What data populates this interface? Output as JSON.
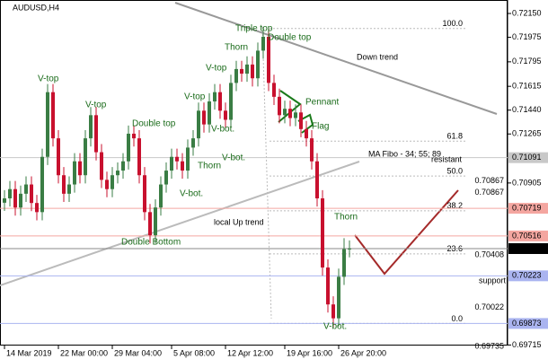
{
  "chart_data": {
    "type": "candlestick",
    "title": "AUDUSD,H4",
    "ylim": [
      0.69711,
      0.72249
    ],
    "yticks": [
      {
        "value": 0.7215,
        "label": "0.72150"
      },
      {
        "value": 0.71975,
        "label": "0.71975"
      },
      {
        "value": 0.71795,
        "label": "0.71795"
      },
      {
        "value": 0.71615,
        "label": "0.71615"
      },
      {
        "value": 0.7144,
        "label": "0.71440"
      },
      {
        "value": 0.71265,
        "label": "0.71265"
      },
      {
        "value": 0.70905,
        "label": "0.70905"
      },
      {
        "value": 0.69715,
        "label": "0.69715"
      }
    ],
    "xticks": [
      {
        "value": 0,
        "label": "14 Mar 2019"
      },
      {
        "value": 10,
        "label": "22 Mar 00:00"
      },
      {
        "value": 20,
        "label": "29 Mar 04:00"
      },
      {
        "value": 31,
        "label": "5 Apr 08:00"
      },
      {
        "value": 41,
        "label": "12 Apr 12:00"
      },
      {
        "value": 52,
        "label": "19 Apr 16:00"
      },
      {
        "value": 62,
        "label": "26 Apr 20:00"
      }
    ],
    "bull_color": "#3a7d44",
    "bear_color": "#c8102e",
    "candles": [
      [
        0.7076,
        0.70852,
        0.707,
        0.70792
      ],
      [
        0.70792,
        0.7092,
        0.70732,
        0.7086
      ],
      [
        0.7086,
        0.7092,
        0.70665,
        0.70725
      ],
      [
        0.70725,
        0.70886,
        0.70665,
        0.70826
      ],
      [
        0.70826,
        0.70954,
        0.70766,
        0.70894
      ],
      [
        0.70894,
        0.70954,
        0.70698,
        0.70758
      ],
      [
        0.70758,
        0.70818,
        0.70631,
        0.70691
      ],
      [
        0.70691,
        0.71157,
        0.70631,
        0.71097
      ],
      [
        0.71097,
        0.71632,
        0.71037,
        0.71572
      ],
      [
        0.71572,
        0.71632,
        0.71173,
        0.71233
      ],
      [
        0.71233,
        0.71293,
        0.70902,
        0.70962
      ],
      [
        0.70962,
        0.71022,
        0.70766,
        0.70826
      ],
      [
        0.70826,
        0.70954,
        0.70766,
        0.70894
      ],
      [
        0.70894,
        0.71124,
        0.70834,
        0.71064
      ],
      [
        0.71064,
        0.71124,
        0.70902,
        0.70962
      ],
      [
        0.70962,
        0.71293,
        0.70902,
        0.71233
      ],
      [
        0.71233,
        0.71463,
        0.71173,
        0.71403
      ],
      [
        0.71403,
        0.71463,
        0.71071,
        0.71131
      ],
      [
        0.71131,
        0.71191,
        0.70868,
        0.70928
      ],
      [
        0.70928,
        0.70988,
        0.708,
        0.7086
      ],
      [
        0.7086,
        0.71022,
        0.708,
        0.70962
      ],
      [
        0.70962,
        0.71056,
        0.70902,
        0.70996
      ],
      [
        0.70996,
        0.71124,
        0.70936,
        0.71064
      ],
      [
        0.71064,
        0.71327,
        0.71004,
        0.71267
      ],
      [
        0.71267,
        0.71327,
        0.71173,
        0.71233
      ],
      [
        0.71233,
        0.71293,
        0.70902,
        0.70962
      ],
      [
        0.70962,
        0.71022,
        0.70631,
        0.70691
      ],
      [
        0.70691,
        0.70751,
        0.70461,
        0.70521
      ],
      [
        0.70521,
        0.70785,
        0.70461,
        0.70725
      ],
      [
        0.70725,
        0.70954,
        0.70665,
        0.70894
      ],
      [
        0.70894,
        0.71056,
        0.70834,
        0.70996
      ],
      [
        0.70996,
        0.71157,
        0.70936,
        0.71097
      ],
      [
        0.71097,
        0.71157,
        0.71004,
        0.71064
      ],
      [
        0.71064,
        0.71124,
        0.70936,
        0.70996
      ],
      [
        0.70996,
        0.71225,
        0.70936,
        0.71165
      ],
      [
        0.71165,
        0.71293,
        0.71105,
        0.71233
      ],
      [
        0.71233,
        0.71496,
        0.71173,
        0.71436
      ],
      [
        0.71436,
        0.71496,
        0.71275,
        0.71335
      ],
      [
        0.71335,
        0.71564,
        0.71275,
        0.71504
      ],
      [
        0.71504,
        0.71632,
        0.71444,
        0.71572
      ],
      [
        0.71572,
        0.71632,
        0.71376,
        0.71436
      ],
      [
        0.71436,
        0.71496,
        0.71309,
        0.71369
      ],
      [
        0.71369,
        0.717,
        0.71309,
        0.7164
      ],
      [
        0.7164,
        0.71802,
        0.7158,
        0.71742
      ],
      [
        0.71742,
        0.71802,
        0.71648,
        0.71708
      ],
      [
        0.71708,
        0.71835,
        0.71648,
        0.71775
      ],
      [
        0.71775,
        0.71835,
        0.71614,
        0.71674
      ],
      [
        0.71674,
        0.71937,
        0.71614,
        0.71877
      ],
      [
        0.71877,
        0.7205,
        0.71817,
        0.71979
      ],
      [
        0.71979,
        0.72039,
        0.7158,
        0.7164
      ],
      [
        0.7164,
        0.717,
        0.71478,
        0.71538
      ],
      [
        0.71538,
        0.71598,
        0.71343,
        0.71403
      ],
      [
        0.71403,
        0.7151,
        0.71343,
        0.7145
      ],
      [
        0.7145,
        0.7151,
        0.71322,
        0.71382
      ],
      [
        0.71382,
        0.71483,
        0.71322,
        0.71423
      ],
      [
        0.71423,
        0.71483,
        0.71241,
        0.71301
      ],
      [
        0.71301,
        0.71361,
        0.71173,
        0.71233
      ],
      [
        0.71233,
        0.71293,
        0.71004,
        0.71064
      ],
      [
        0.71064,
        0.71124,
        0.70732,
        0.70792
      ],
      [
        0.70792,
        0.70852,
        0.70224,
        0.70284
      ],
      [
        0.70284,
        0.70344,
        0.69953,
        0.70013
      ],
      [
        0.70013,
        0.70073,
        0.69845,
        0.69911
      ],
      [
        0.69911,
        0.70276,
        0.69851,
        0.70216
      ],
      [
        0.70216,
        0.705,
        0.70156,
        0.70419
      ],
      [
        0.70419,
        0.70483,
        0.70359,
        0.70423
      ]
    ],
    "levels": [
      {
        "value": 0.71091,
        "label": "0.71091",
        "color": "#c8c8c8"
      },
      {
        "value": 0.70719,
        "label": "0.70719",
        "color": "#f4a6a0"
      },
      {
        "value": 0.70516,
        "label": "0.70516",
        "color": "#f4a6a0"
      },
      {
        "value": 0.70423,
        "label": "0.70423",
        "color": "#000000"
      },
      {
        "value": 0.70223,
        "label": "0.70223",
        "color": "#aab4f0"
      },
      {
        "value": 0.69873,
        "label": "0.69873",
        "color": "#aab4f0"
      }
    ],
    "fibo": {
      "high": 0.7204,
      "low": 0.69873,
      "levels": [
        {
          "value": 100,
          "label": "100.0"
        },
        {
          "value": 61.8,
          "label": "61.8"
        },
        {
          "value": 50,
          "label": "50.0"
        },
        {
          "value": 38.2,
          "label": "38.2"
        },
        {
          "value": 23.6,
          "label": "23.6"
        },
        {
          "value": 0,
          "label": "0.0"
        }
      ]
    },
    "price_notes": [
      {
        "value": 0.70867,
        "label": "0.70867"
      },
      {
        "value": 0.70867,
        "label": "0.70867"
      },
      {
        "value": 0.70408,
        "label": "0.70408"
      },
      {
        "value": 0.70022,
        "label": "0.70022"
      },
      {
        "value": 0.69735,
        "label": "0.69735"
      }
    ],
    "annotations": [
      "V-top",
      "V-top",
      "Double top",
      "V-top",
      "V-top",
      "Thorn",
      "Triple top",
      "Double top",
      "V-bot.",
      "V-bot.",
      "Thorn",
      "V-bot.",
      "Double Bottom",
      "Pennant",
      "Flag",
      "Thorn",
      "V-bot."
    ],
    "trend_labels": [
      "Down trend",
      "local Up trend",
      "resistant",
      "support",
      "MA Fibo - 34; 55; 89"
    ]
  }
}
